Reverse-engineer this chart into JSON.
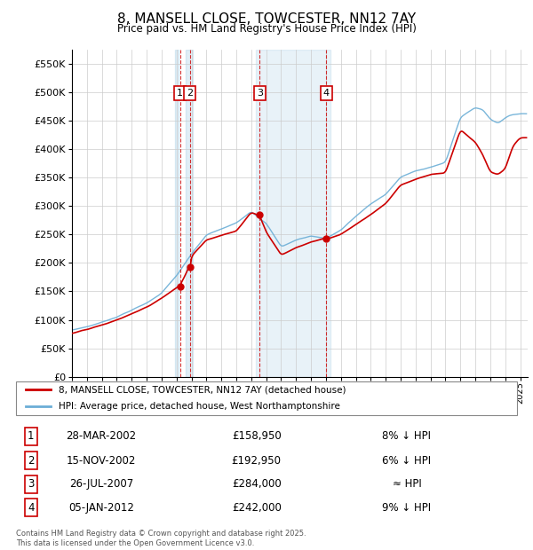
{
  "title": "8, MANSELL CLOSE, TOWCESTER, NN12 7AY",
  "subtitle": "Price paid vs. HM Land Registry's House Price Index (HPI)",
  "hpi_color": "#6baed6",
  "price_color": "#cc0000",
  "background_color": "#ffffff",
  "grid_color": "#cccccc",
  "legend_entries": [
    "8, MANSELL CLOSE, TOWCESTER, NN12 7AY (detached house)",
    "HPI: Average price, detached house, West Northamptonshire"
  ],
  "transactions": [
    {
      "num": 1,
      "date": "28-MAR-2002",
      "price_str": "£158,950",
      "rel": "8% ↓ HPI",
      "x_year": 2002.24,
      "price_val": 158950
    },
    {
      "num": 2,
      "date": "15-NOV-2002",
      "price_str": "£192,950",
      "rel": "6% ↓ HPI",
      "x_year": 2002.88,
      "price_val": 192950
    },
    {
      "num": 3,
      "date": "26-JUL-2007",
      "price_str": "£284,000",
      "rel": "≈ HPI",
      "x_year": 2007.57,
      "price_val": 284000
    },
    {
      "num": 4,
      "date": "05-JAN-2012",
      "price_str": "£242,000",
      "rel": "9% ↓ HPI",
      "x_year": 2012.03,
      "price_val": 242000
    }
  ],
  "footer": "Contains HM Land Registry data © Crown copyright and database right 2025.\nThis data is licensed under the Open Government Licence v3.0.",
  "ylim": [
    0,
    575000
  ],
  "xlim_start": 1995.0,
  "xlim_end": 2025.5
}
